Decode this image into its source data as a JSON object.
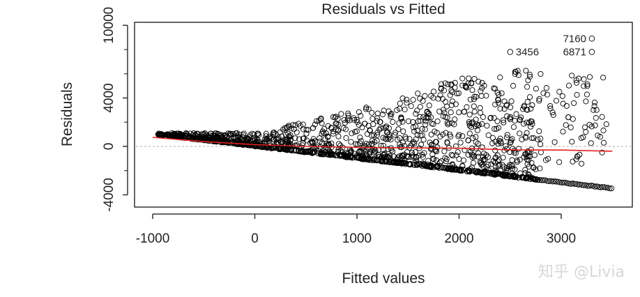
{
  "chart_data": {
    "type": "scatter",
    "title": "Residuals vs Fitted",
    "xlabel": "Fitted values",
    "ylabel": "Residuals",
    "xlim": [
      -1000,
      3500
    ],
    "ylim": [
      -5000,
      10000
    ],
    "x_ticks": [
      -1000,
      0,
      1000,
      2000,
      3000
    ],
    "y_ticks": [
      -4000,
      0,
      4000,
      10000
    ],
    "reference_line": {
      "y": 0,
      "style": "dotted",
      "color": "#bdbdbd"
    },
    "smooth_line": {
      "color": "#e02020",
      "x": [
        -1000,
        -500,
        0,
        500,
        1000,
        1500,
        2000,
        2500,
        3000,
        3500
      ],
      "y": [
        750,
        400,
        150,
        0,
        -80,
        -120,
        -150,
        -280,
        -300,
        -400
      ]
    },
    "labeled_outliers": [
      {
        "label": "7160",
        "x": 3300,
        "y": 8900
      },
      {
        "label": "3456",
        "x": 2500,
        "y": 7800
      },
      {
        "label": "6871",
        "x": 3300,
        "y": 7800
      }
    ],
    "point_style": "open-circle",
    "point_cloud_description_x_range": [
      -1000,
      3500
    ],
    "lower_bound_line": {
      "x": [
        -1000,
        3500
      ],
      "y": [
        1000,
        -3500
      ]
    }
  },
  "watermark": "知乎 @Livia"
}
